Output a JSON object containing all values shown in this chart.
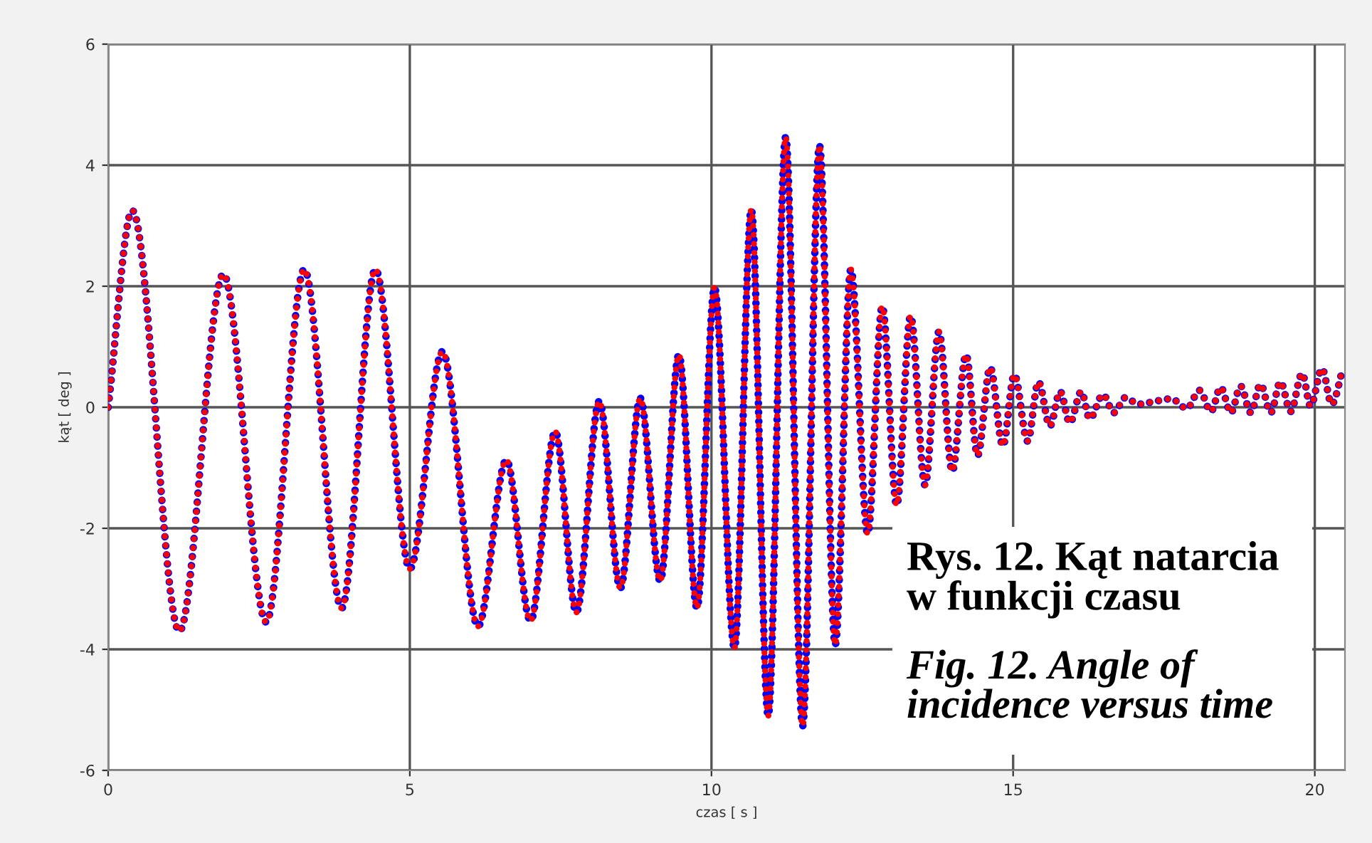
{
  "chart_data": {
    "type": "line",
    "xlabel": "czas [ s ]",
    "ylabel": "kąt [ deg ]",
    "x": [
      0,
      0.4,
      1.18,
      1.91,
      2.62,
      3.25,
      3.87,
      4.43,
      5.0,
      5.54,
      6.13,
      6.6,
      7.0,
      7.41,
      7.76,
      8.14,
      8.49,
      8.82,
      9.15,
      9.46,
      9.76,
      10.05,
      10.38,
      10.66,
      10.94,
      11.23,
      11.51,
      11.79,
      12.05,
      12.31,
      12.59,
      12.83,
      13.07,
      13.3,
      13.54,
      13.77,
      13.99,
      14.22,
      14.41,
      14.62,
      14.83,
      15.02,
      15.24,
      15.42,
      15.61,
      15.78,
      15.94,
      16.13,
      16.27,
      16.49,
      16.67,
      16.86,
      17.08,
      17.36,
      17.62,
      17.88,
      18.09,
      18.28,
      18.44,
      18.61,
      18.77,
      18.94,
      19.1,
      19.27,
      19.43,
      19.6,
      19.79,
      19.93,
      20.12,
      20.28,
      20.47
    ],
    "series": [
      {
        "color": "#0000ff",
        "values": [
          0,
          3.25,
          -3.7,
          2.2,
          -3.55,
          2.28,
          -3.32,
          2.28,
          -2.67,
          0.92,
          -3.62,
          -0.87,
          -3.53,
          -0.4,
          -3.39,
          0.1,
          -2.99,
          0.15,
          -2.87,
          0.87,
          -3.32,
          1.98,
          -3.98,
          3.27,
          -5.1,
          4.47,
          -5.27,
          4.33,
          -3.93,
          2.28,
          -2.09,
          1.67,
          -1.62,
          1.51,
          -1.29,
          1.25,
          -1.06,
          0.87,
          -0.8,
          0.66,
          -0.64,
          0.54,
          -0.56,
          0.42,
          -0.31,
          0.26,
          -0.26,
          0.26,
          -0.19,
          0.21,
          -0.09,
          0.16,
          0.05,
          0.1,
          0.14,
          -0.02,
          0.28,
          -0.07,
          0.33,
          -0.09,
          0.35,
          -0.09,
          0.38,
          -0.09,
          0.42,
          -0.07,
          0.56,
          0.02,
          0.64,
          0.05,
          0.66
        ]
      },
      {
        "color": "#ff0000",
        "values": [
          0,
          3.25,
          -3.7,
          2.2,
          -3.55,
          2.28,
          -3.32,
          2.28,
          -2.67,
          0.92,
          -3.62,
          -0.87,
          -3.53,
          -0.4,
          -3.39,
          0.1,
          -2.99,
          0.15,
          -2.87,
          0.87,
          -3.32,
          1.98,
          -3.98,
          3.27,
          -5.1,
          4.47,
          -5.27,
          4.33,
          -3.93,
          2.28,
          -2.09,
          1.67,
          -1.62,
          1.51,
          -1.29,
          1.25,
          -1.06,
          0.87,
          -0.8,
          0.66,
          -0.64,
          0.54,
          -0.56,
          0.42,
          -0.31,
          0.26,
          -0.26,
          0.26,
          -0.19,
          0.21,
          -0.09,
          0.16,
          0.05,
          0.1,
          0.14,
          -0.02,
          0.28,
          -0.07,
          0.33,
          -0.09,
          0.35,
          -0.09,
          0.38,
          -0.09,
          0.42,
          -0.07,
          0.56,
          0.02,
          0.64,
          0.05,
          0.66
        ]
      }
    ],
    "xlim": [
      0,
      20.5
    ],
    "xticks": [
      0,
      5,
      10,
      15,
      20
    ],
    "ylim": [
      -6,
      6
    ],
    "yticks": [
      -6,
      -4,
      -2,
      0,
      2,
      4,
      6
    ],
    "grid": true,
    "line_style": "dotted",
    "annotations": [
      "Rys. 12. Kąt natarcia w funkcji czasu",
      "Fig. 12. Angle of incidence versus time"
    ]
  }
}
